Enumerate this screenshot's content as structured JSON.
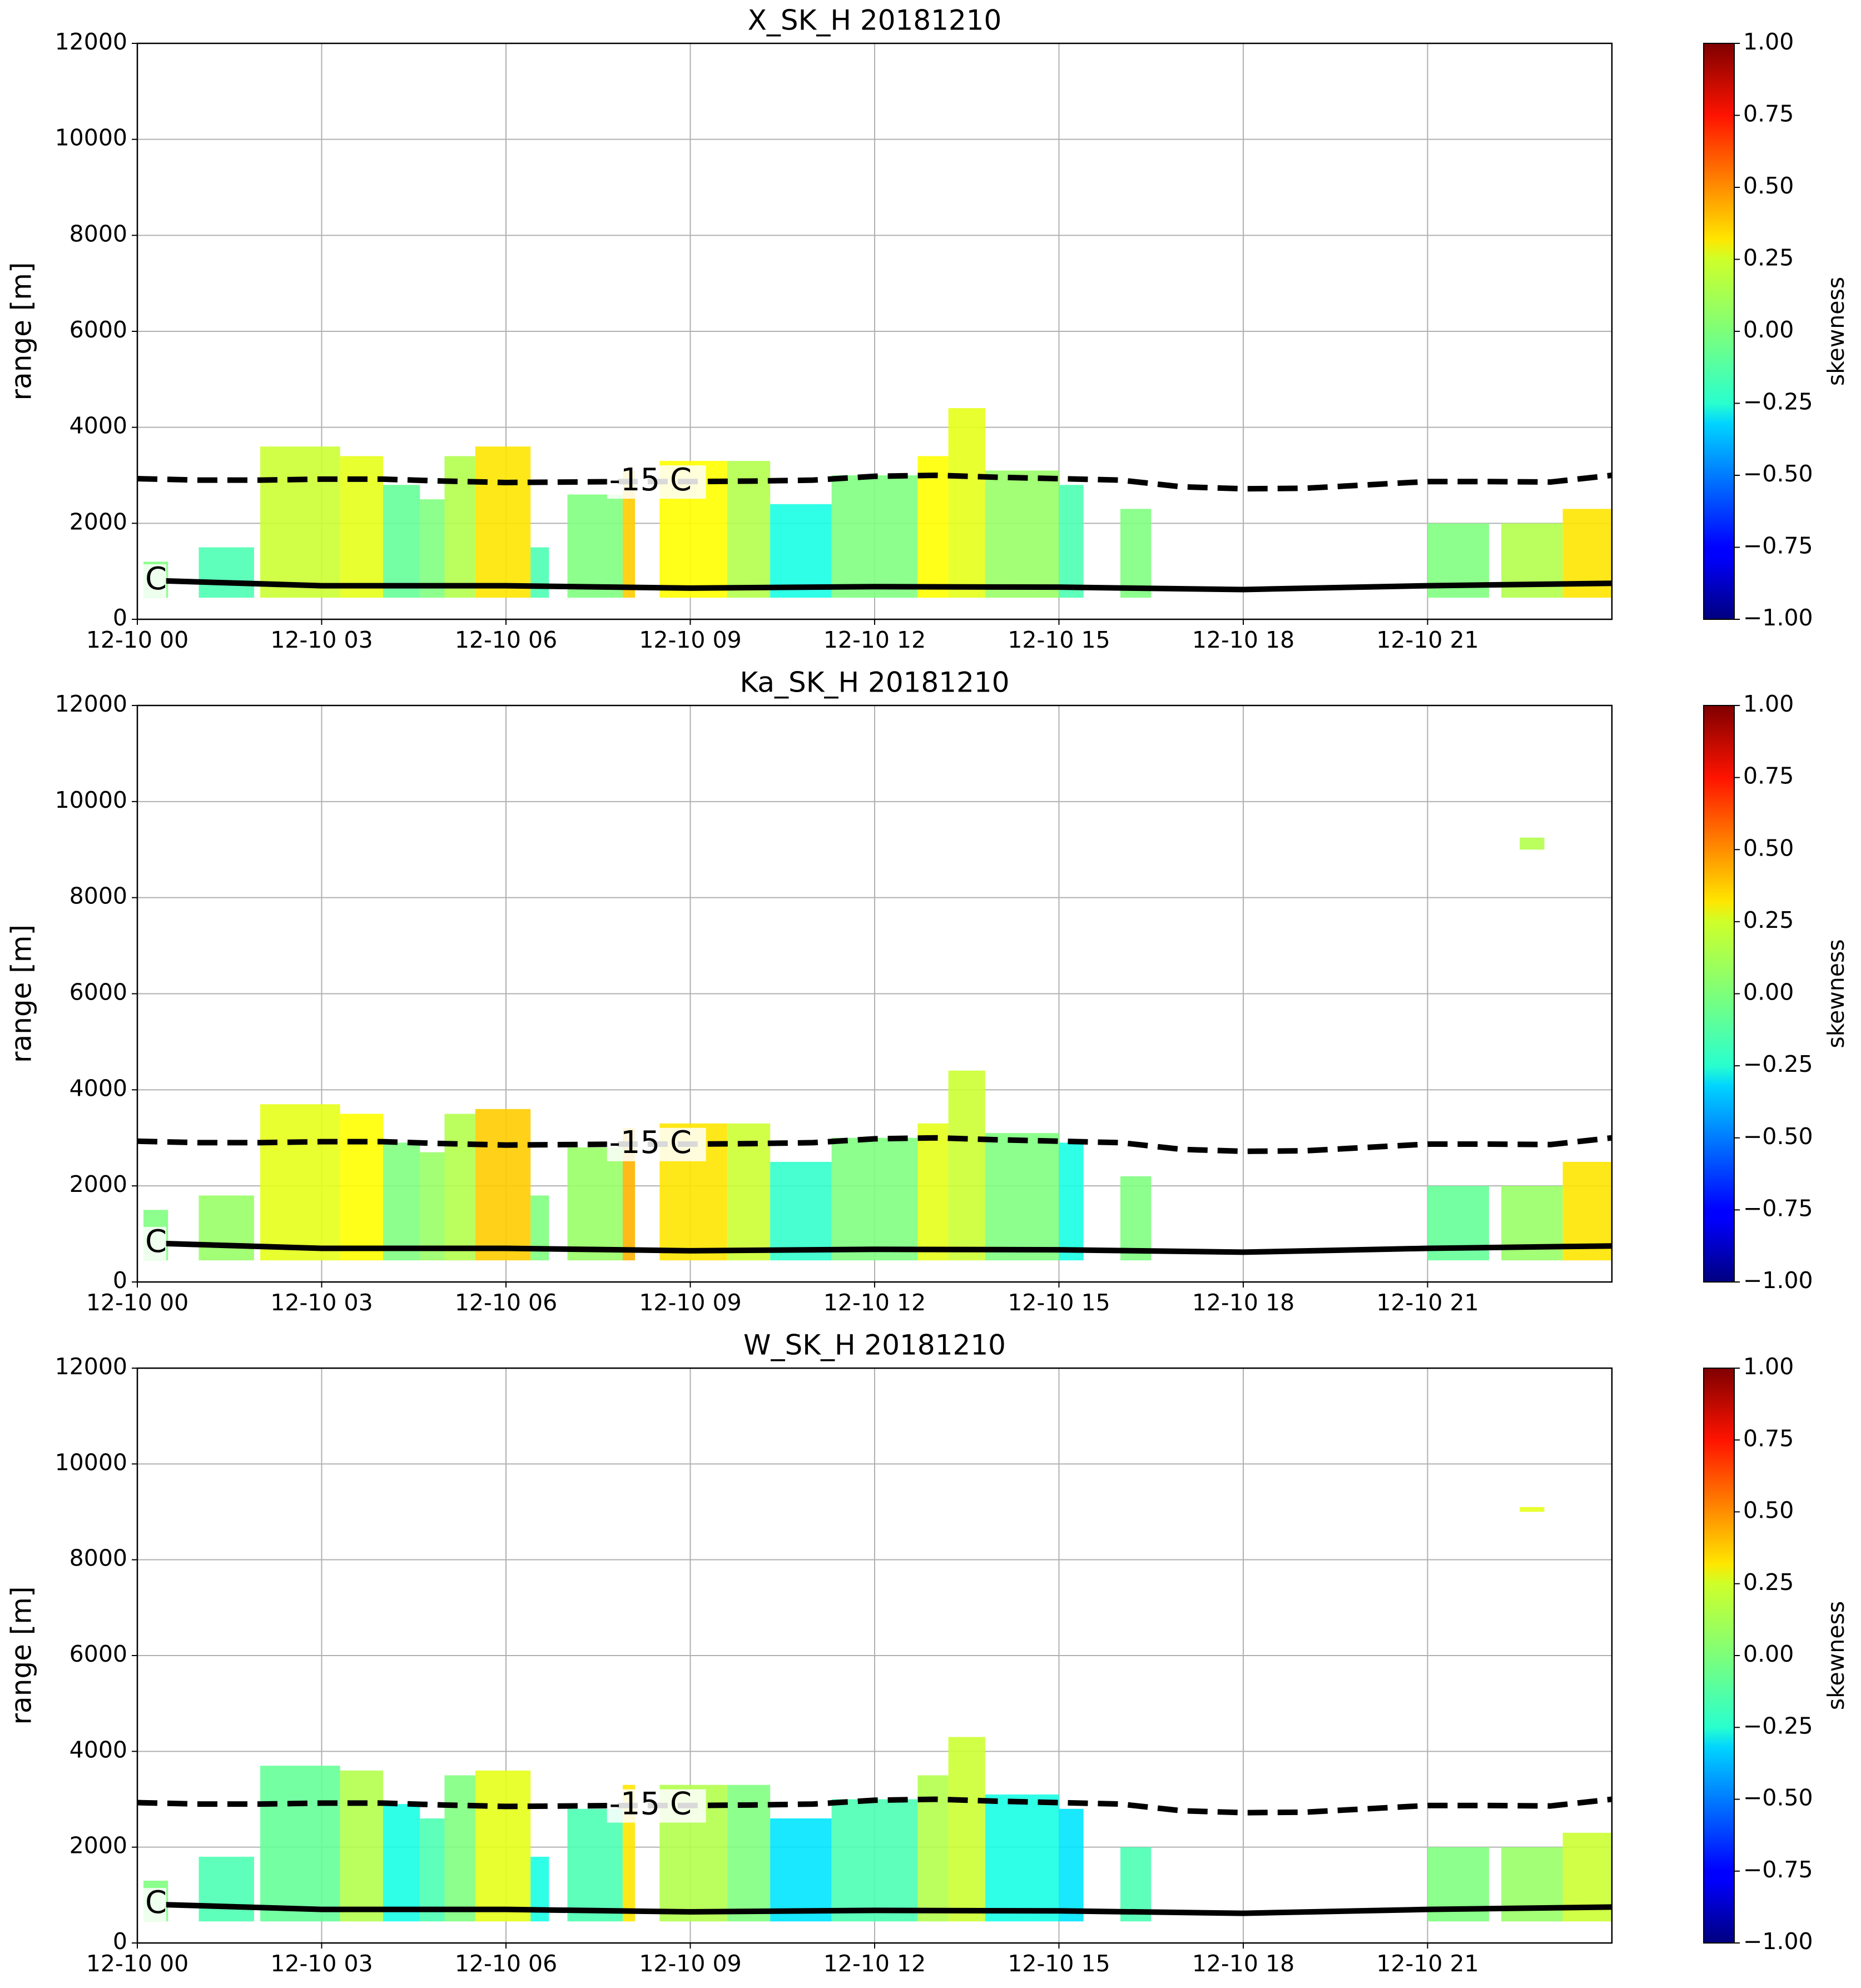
{
  "chart_data": [
    {
      "type": "heatmap",
      "title": "X_SK_H 20181210",
      "ylabel": "range [m]",
      "xlim": [
        0,
        24
      ],
      "xticks": [
        {
          "value": 0,
          "label": "12-10 00"
        },
        {
          "value": 3,
          "label": "12-10 03"
        },
        {
          "value": 6,
          "label": "12-10 06"
        },
        {
          "value": 9,
          "label": "12-10 09"
        },
        {
          "value": 12,
          "label": "12-10 12"
        },
        {
          "value": 15,
          "label": "12-10 15"
        },
        {
          "value": 18,
          "label": "12-10 18"
        },
        {
          "value": 21,
          "label": "12-10 21"
        }
      ],
      "ylim": [
        0,
        12000
      ],
      "yticks": [
        0,
        2000,
        4000,
        6000,
        8000,
        10000,
        12000
      ],
      "grid": true,
      "colorbar": {
        "label": "skewness",
        "clim": [
          -1,
          1
        ],
        "ticks": [
          {
            "value": 1,
            "label": "1.00"
          },
          {
            "value": 0.75,
            "label": "0.75"
          },
          {
            "value": 0.5,
            "label": "0.50"
          },
          {
            "value": 0.25,
            "label": "0.25"
          },
          {
            "value": 0,
            "label": "0.00"
          },
          {
            "value": -0.25,
            "label": "−0.25"
          },
          {
            "value": -0.5,
            "label": "−0.50"
          },
          {
            "value": -0.75,
            "label": "−0.75"
          },
          {
            "value": -1,
            "label": "−1.00"
          }
        ]
      },
      "echoes": {
        "start": [
          0.1,
          1.0,
          2.0,
          3.3,
          4.0,
          4.6,
          5.0,
          5.5,
          6.4,
          7.0,
          7.9,
          8.5,
          9.6,
          10.3,
          11.3,
          12.7,
          13.2,
          13.8,
          15.0,
          16.0,
          21.0,
          22.2,
          23.2
        ],
        "end": [
          0.5,
          1.9,
          3.3,
          4.0,
          4.6,
          5.0,
          5.5,
          6.4,
          6.7,
          7.9,
          8.1,
          9.6,
          10.3,
          11.3,
          12.7,
          13.2,
          13.8,
          15.0,
          15.4,
          16.5,
          22.0,
          23.2,
          24.0
        ],
        "base": [
          450,
          450,
          450,
          450,
          450,
          450,
          450,
          450,
          450,
          450,
          450,
          450,
          450,
          450,
          450,
          450,
          450,
          450,
          450,
          450,
          450,
          450,
          450
        ],
        "top": [
          1200,
          1500,
          3600,
          3400,
          2800,
          2500,
          3400,
          3600,
          1500,
          2600,
          3100,
          3300,
          3300,
          2400,
          3000,
          3400,
          4400,
          3100,
          2800,
          2300,
          2000,
          2000,
          2300
        ],
        "skewness": [
          0.0,
          -0.1,
          0.15,
          0.2,
          -0.05,
          0.0,
          0.1,
          0.3,
          -0.1,
          0.0,
          0.35,
          0.25,
          0.1,
          -0.2,
          0.0,
          0.25,
          0.2,
          0.05,
          -0.1,
          0.0,
          0.0,
          0.1,
          0.3
        ]
      },
      "isotherms": [
        {
          "label": "-15 C",
          "style": "dashed",
          "x": [
            0,
            1,
            2,
            3,
            4,
            5,
            6,
            7,
            8,
            9,
            10,
            11,
            12,
            13,
            14,
            15,
            16,
            17,
            18,
            19,
            20,
            21,
            22,
            23,
            24
          ],
          "y": [
            2930,
            2900,
            2900,
            2920,
            2920,
            2880,
            2850,
            2860,
            2870,
            2870,
            2880,
            2900,
            2980,
            3000,
            2960,
            2930,
            2900,
            2760,
            2720,
            2730,
            2800,
            2870,
            2870,
            2860,
            3000
          ]
        },
        {
          "label": "C",
          "style": "solid",
          "x": [
            0.45,
            3,
            6,
            9,
            12,
            15,
            18,
            21,
            24
          ],
          "y": [
            800,
            700,
            700,
            650,
            680,
            670,
            620,
            700,
            750
          ]
        }
      ]
    },
    {
      "type": "heatmap",
      "title": "Ka_SK_H 20181210",
      "ylabel": "range [m]",
      "xlim": [
        0,
        24
      ],
      "xticks": [
        {
          "value": 0,
          "label": "12-10 00"
        },
        {
          "value": 3,
          "label": "12-10 03"
        },
        {
          "value": 6,
          "label": "12-10 06"
        },
        {
          "value": 9,
          "label": "12-10 09"
        },
        {
          "value": 12,
          "label": "12-10 12"
        },
        {
          "value": 15,
          "label": "12-10 15"
        },
        {
          "value": 18,
          "label": "12-10 18"
        },
        {
          "value": 21,
          "label": "12-10 21"
        }
      ],
      "ylim": [
        0,
        12000
      ],
      "yticks": [
        0,
        2000,
        4000,
        6000,
        8000,
        10000,
        12000
      ],
      "grid": true,
      "colorbar": {
        "label": "skewness",
        "clim": [
          -1,
          1
        ],
        "ticks": [
          {
            "value": 1,
            "label": "1.00"
          },
          {
            "value": 0.75,
            "label": "0.75"
          },
          {
            "value": 0.5,
            "label": "0.50"
          },
          {
            "value": 0.25,
            "label": "0.25"
          },
          {
            "value": 0,
            "label": "0.00"
          },
          {
            "value": -0.25,
            "label": "−0.25"
          },
          {
            "value": -0.5,
            "label": "−0.50"
          },
          {
            "value": -0.75,
            "label": "−0.75"
          },
          {
            "value": -1,
            "label": "−1.00"
          }
        ]
      },
      "echoes": {
        "start": [
          0.1,
          1.0,
          2.0,
          3.3,
          4.0,
          4.6,
          5.0,
          5.5,
          6.4,
          7.0,
          7.9,
          8.5,
          9.6,
          10.3,
          11.3,
          12.7,
          13.2,
          13.8,
          15.0,
          16.0,
          21.0,
          22.2,
          23.2,
          22.5
        ],
        "end": [
          0.5,
          1.9,
          3.3,
          4.0,
          4.6,
          5.0,
          5.5,
          6.4,
          6.7,
          7.9,
          8.1,
          9.6,
          10.3,
          11.3,
          12.7,
          13.2,
          13.8,
          15.0,
          15.4,
          16.5,
          22.0,
          23.2,
          24.0,
          22.9
        ],
        "base": [
          450,
          450,
          450,
          450,
          450,
          450,
          450,
          450,
          450,
          450,
          450,
          450,
          450,
          450,
          450,
          450,
          450,
          450,
          450,
          450,
          450,
          450,
          450,
          9000
        ],
        "top": [
          1500,
          1800,
          3700,
          3500,
          2900,
          2700,
          3500,
          3600,
          1800,
          2800,
          3200,
          3300,
          3300,
          2500,
          3000,
          3300,
          4400,
          3100,
          2900,
          2200,
          2000,
          2000,
          2500,
          9250
        ],
        "skewness": [
          0.0,
          0.05,
          0.2,
          0.25,
          0.0,
          0.05,
          0.1,
          0.35,
          0.0,
          0.05,
          0.4,
          0.3,
          0.15,
          -0.15,
          0.0,
          0.2,
          0.15,
          0.0,
          -0.2,
          0.0,
          -0.05,
          0.05,
          0.3,
          0.1
        ]
      },
      "isotherms": [
        {
          "label": "-15 C",
          "style": "dashed",
          "x": [
            0,
            1,
            2,
            3,
            4,
            5,
            6,
            7,
            8,
            9,
            10,
            11,
            12,
            13,
            14,
            15,
            16,
            17,
            18,
            19,
            20,
            21,
            22,
            23,
            24
          ],
          "y": [
            2930,
            2900,
            2900,
            2920,
            2920,
            2880,
            2850,
            2860,
            2870,
            2870,
            2880,
            2900,
            2980,
            3000,
            2960,
            2930,
            2900,
            2760,
            2720,
            2730,
            2800,
            2870,
            2870,
            2860,
            3000
          ]
        },
        {
          "label": "C",
          "style": "solid",
          "x": [
            0.45,
            3,
            6,
            9,
            12,
            15,
            18,
            21,
            24
          ],
          "y": [
            800,
            700,
            700,
            650,
            680,
            670,
            620,
            700,
            750
          ]
        }
      ]
    },
    {
      "type": "heatmap",
      "title": "W_SK_H 20181210",
      "ylabel": "range [m]",
      "xlim": [
        0,
        24
      ],
      "xticks": [
        {
          "value": 0,
          "label": "12-10 00"
        },
        {
          "value": 3,
          "label": "12-10 03"
        },
        {
          "value": 6,
          "label": "12-10 06"
        },
        {
          "value": 9,
          "label": "12-10 09"
        },
        {
          "value": 12,
          "label": "12-10 12"
        },
        {
          "value": 15,
          "label": "12-10 15"
        },
        {
          "value": 18,
          "label": "12-10 18"
        },
        {
          "value": 21,
          "label": "12-10 21"
        }
      ],
      "ylim": [
        0,
        12000
      ],
      "yticks": [
        0,
        2000,
        4000,
        6000,
        8000,
        10000,
        12000
      ],
      "grid": true,
      "colorbar": {
        "label": "skewness",
        "clim": [
          -1,
          1
        ],
        "ticks": [
          {
            "value": 1,
            "label": "1.00"
          },
          {
            "value": 0.75,
            "label": "0.75"
          },
          {
            "value": 0.5,
            "label": "0.50"
          },
          {
            "value": 0.25,
            "label": "0.25"
          },
          {
            "value": 0,
            "label": "0.00"
          },
          {
            "value": -0.25,
            "label": "−0.25"
          },
          {
            "value": -0.5,
            "label": "−0.50"
          },
          {
            "value": -0.75,
            "label": "−0.75"
          },
          {
            "value": -1,
            "label": "−1.00"
          }
        ]
      },
      "echoes": {
        "start": [
          0.1,
          1.0,
          2.0,
          3.3,
          4.0,
          4.6,
          5.0,
          5.5,
          6.4,
          7.0,
          7.9,
          8.5,
          9.6,
          10.3,
          11.3,
          12.7,
          13.2,
          13.8,
          15.0,
          16.0,
          21.0,
          22.2,
          23.2,
          22.5
        ],
        "end": [
          0.5,
          1.9,
          3.3,
          4.0,
          4.6,
          5.0,
          5.5,
          6.4,
          6.7,
          7.9,
          8.1,
          9.6,
          10.3,
          11.3,
          12.7,
          13.2,
          13.8,
          15.0,
          15.4,
          16.5,
          22.0,
          23.2,
          24.0,
          22.9
        ],
        "base": [
          450,
          450,
          450,
          450,
          450,
          450,
          450,
          450,
          450,
          450,
          450,
          450,
          450,
          450,
          450,
          450,
          450,
          450,
          450,
          450,
          450,
          450,
          450,
          9000
        ],
        "top": [
          1300,
          1800,
          3700,
          3600,
          2900,
          2600,
          3500,
          3600,
          1800,
          2800,
          3300,
          3300,
          3300,
          2600,
          3000,
          3500,
          4300,
          3100,
          2800,
          2000,
          2000,
          2000,
          2300,
          9100
        ],
        "skewness": [
          0.0,
          -0.1,
          -0.05,
          0.1,
          -0.2,
          -0.1,
          0.0,
          0.2,
          -0.2,
          -0.1,
          0.3,
          0.1,
          0.0,
          -0.3,
          -0.1,
          0.1,
          0.15,
          -0.2,
          -0.3,
          -0.1,
          0.0,
          0.05,
          0.15,
          0.2
        ]
      },
      "isotherms": [
        {
          "label": "-15 C",
          "style": "dashed",
          "x": [
            0,
            1,
            2,
            3,
            4,
            5,
            6,
            7,
            8,
            9,
            10,
            11,
            12,
            13,
            14,
            15,
            16,
            17,
            18,
            19,
            20,
            21,
            22,
            23,
            24
          ],
          "y": [
            2930,
            2900,
            2900,
            2920,
            2920,
            2880,
            2850,
            2860,
            2870,
            2870,
            2880,
            2900,
            2980,
            3000,
            2960,
            2930,
            2900,
            2760,
            2720,
            2730,
            2800,
            2870,
            2870,
            2860,
            3000
          ]
        },
        {
          "label": "C",
          "style": "solid",
          "x": [
            0.45,
            3,
            6,
            9,
            12,
            15,
            18,
            21,
            24
          ],
          "y": [
            800,
            700,
            700,
            650,
            680,
            670,
            620,
            700,
            750
          ]
        }
      ]
    }
  ]
}
